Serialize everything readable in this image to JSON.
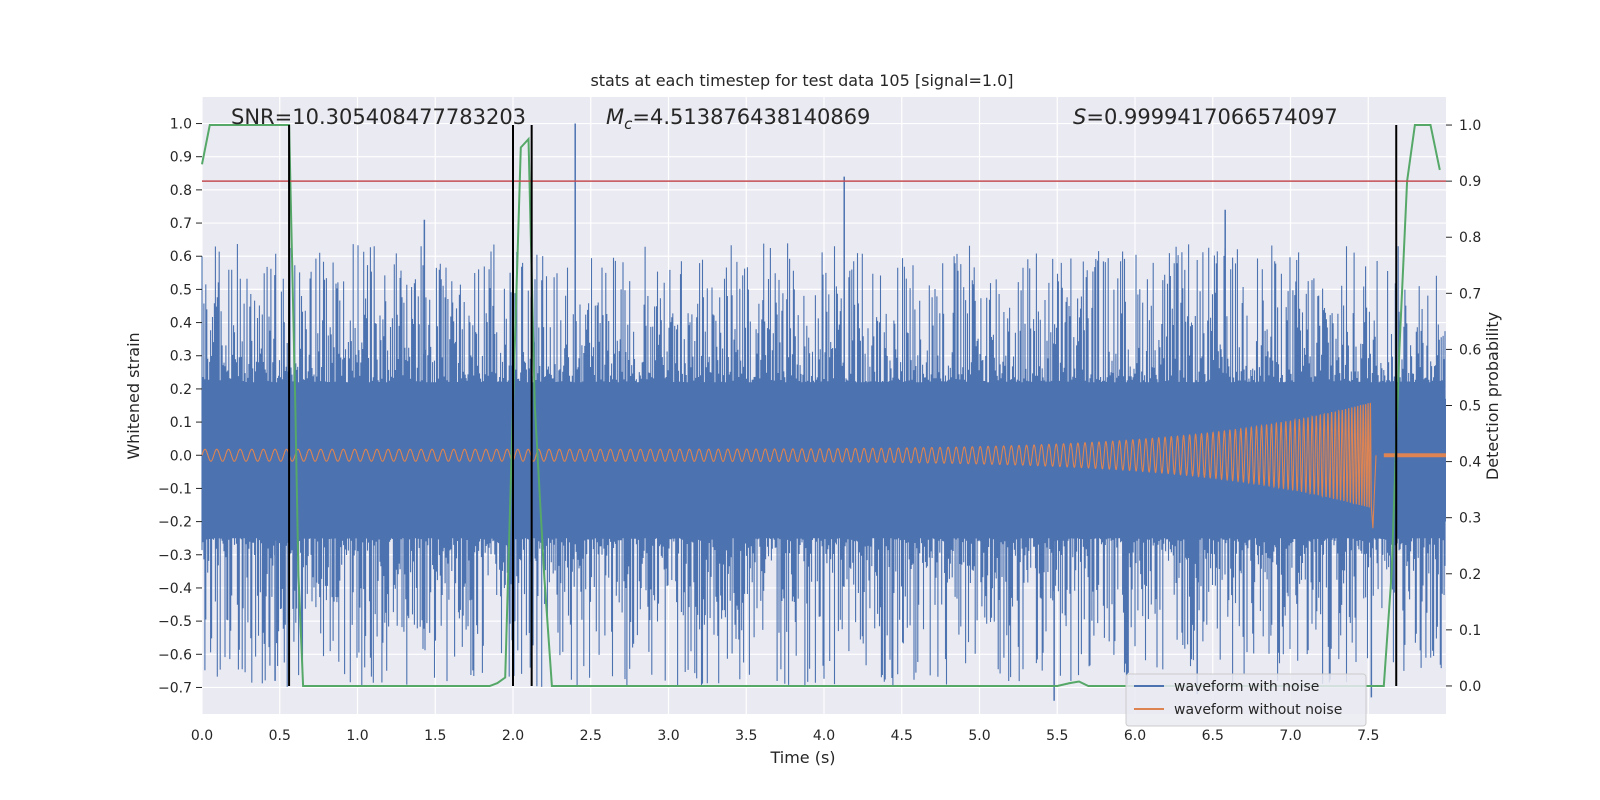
{
  "chart_data": {
    "type": "line",
    "title": "stats at each timestep for test data 105 [signal=1.0]",
    "xlabel": "Time (s)",
    "ylabel": "Whitened strain",
    "y2label": "Detection probability",
    "xlim": [
      0.0,
      8.0
    ],
    "ylim": [
      -0.78,
      1.08
    ],
    "y2lim": [
      -0.05,
      1.05
    ],
    "xticks": [
      "0.0",
      "0.5",
      "1.0",
      "1.5",
      "2.0",
      "2.5",
      "3.0",
      "3.5",
      "4.0",
      "4.5",
      "5.0",
      "5.5",
      "6.0",
      "6.5",
      "7.0",
      "7.5"
    ],
    "yticks": [
      "−0.7",
      "−0.6",
      "−0.5",
      "−0.4",
      "−0.3",
      "−0.2",
      "−0.1",
      "0.0",
      "0.1",
      "0.2",
      "0.3",
      "0.4",
      "0.5",
      "0.6",
      "0.7",
      "0.8",
      "0.9",
      "1.0"
    ],
    "y2ticks": [
      "0.0",
      "0.1",
      "0.2",
      "0.3",
      "0.4",
      "0.5",
      "0.6",
      "0.7",
      "0.8",
      "0.9",
      "1.0"
    ],
    "grid": true,
    "legend_position": "lower-right",
    "annotations": {
      "snr": "SNR=10.305408477783203",
      "mc_symbol": "M",
      "mc_sub": "c",
      "mc_value": "=4.513876438140869",
      "s_symbol": "S",
      "s_value": "=0.9999417066574097"
    },
    "series": [
      {
        "name": "waveform with noise",
        "color": "#4c72b0",
        "axis": "left",
        "x_range": [
          0.0,
          8.0
        ],
        "band_low": -0.35,
        "band_high": 0.35,
        "spike_peaks": [
          [
            2.4,
            1.0
          ],
          [
            4.13,
            0.84
          ],
          [
            1.43,
            0.71
          ],
          [
            6.58,
            0.74
          ],
          [
            0.47,
            -0.68
          ],
          [
            5.48,
            -0.74
          ],
          [
            6.4,
            -0.72
          ],
          [
            7.52,
            -0.73
          ]
        ]
      },
      {
        "name": "waveform without noise",
        "color": "#dd8452",
        "axis": "left",
        "amplitude_start": 0.018,
        "amplitude_peak": 0.16,
        "peak_time": 7.52,
        "merger_end": 7.6
      },
      {
        "name": "detection probability",
        "color": "#55a868",
        "axis": "right",
        "x": [
          0.0,
          0.05,
          0.1,
          0.15,
          0.3,
          0.5,
          0.56,
          0.6,
          0.62,
          0.65,
          0.7,
          1.0,
          1.5,
          1.85,
          1.9,
          1.95,
          2.0,
          2.05,
          2.1,
          2.14,
          2.2,
          2.25,
          2.3,
          3.0,
          4.0,
          5.0,
          5.5,
          5.58,
          5.64,
          5.7,
          5.76,
          6.0,
          7.0,
          7.5,
          7.6,
          7.65,
          7.7,
          7.75,
          7.8,
          7.85,
          7.9,
          7.96
        ],
        "y": [
          0.93,
          1.0,
          1.0,
          1.0,
          1.0,
          1.0,
          1.0,
          0.5,
          0.2,
          0.0,
          0.0,
          0.0,
          0.0,
          0.0,
          0.005,
          0.015,
          0.5,
          0.96,
          0.975,
          0.5,
          0.2,
          0.0,
          0.0,
          0.0,
          0.0,
          0.0,
          0.0,
          0.005,
          0.008,
          0.0,
          0.0,
          0.0,
          0.0,
          0.0,
          0.0,
          0.2,
          0.6,
          0.9,
          1.0,
          1.0,
          1.0,
          0.92
        ]
      }
    ],
    "threshold_line": {
      "color": "#c44e52",
      "value": 0.9,
      "axis": "right"
    },
    "vertical_lines": [
      0.56,
      2.0,
      2.12,
      7.68
    ]
  }
}
